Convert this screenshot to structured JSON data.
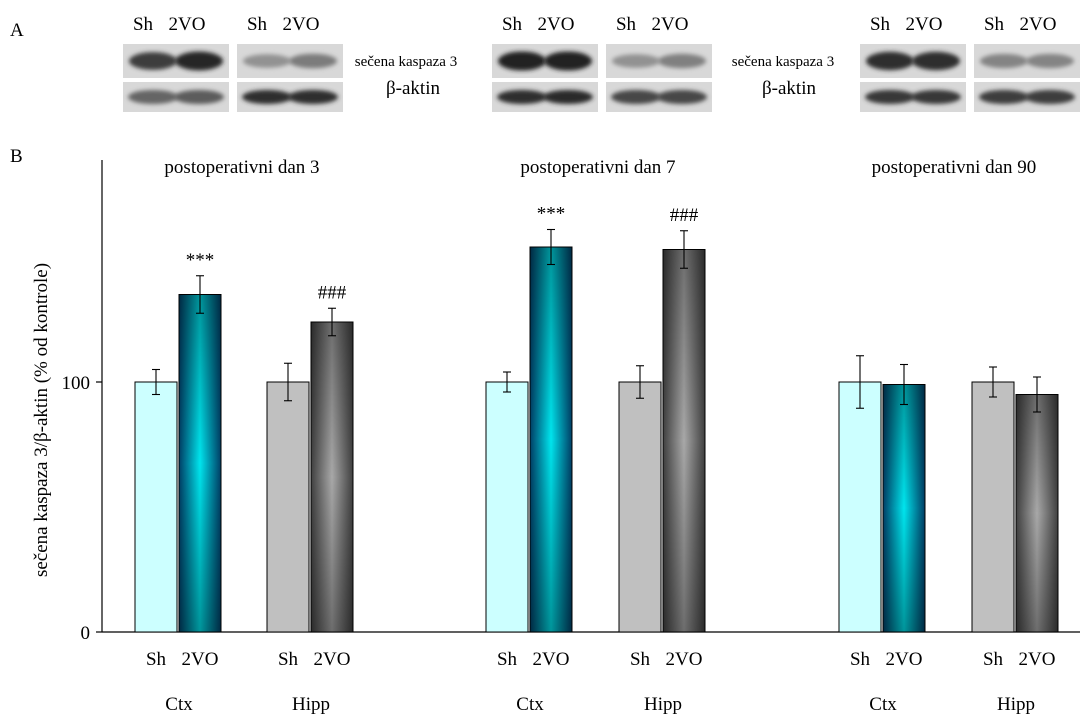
{
  "panel_labels": {
    "a": "A",
    "b": "B"
  },
  "blots": {
    "lane_labels": [
      "Sh",
      "2VO",
      "Sh",
      "2VO"
    ],
    "band_labels": {
      "caspase": "sečena kaspaza 3",
      "actin": "β-aktin"
    },
    "groups": [
      {
        "top": [
          [
            0.78,
            0.9
          ],
          [
            0.3,
            0.42
          ]
        ],
        "bottom": [
          [
            0.55,
            0.6
          ],
          [
            0.85,
            0.85
          ]
        ]
      },
      {
        "top": [
          [
            0.92,
            0.92
          ],
          [
            0.3,
            0.4
          ]
        ],
        "bottom": [
          [
            0.85,
            0.88
          ],
          [
            0.72,
            0.72
          ]
        ]
      },
      {
        "top": [
          [
            0.85,
            0.85
          ],
          [
            0.38,
            0.38
          ]
        ],
        "bottom": [
          [
            0.8,
            0.8
          ],
          [
            0.78,
            0.78
          ]
        ]
      }
    ]
  },
  "chart_data": {
    "type": "bar",
    "ylabel": "sečena kaspaza 3/β-aktin (% od kontrole)",
    "yticks": [
      0,
      100
    ],
    "ylim": [
      0,
      185
    ],
    "grid": false,
    "category_labels": [
      "Ctx",
      "Hipp",
      "Ctx",
      "Hipp",
      "Ctx",
      "Hipp"
    ],
    "bar_labels": [
      "Sh",
      "2VO"
    ],
    "colors": {
      "ctx_sh": "#ccffff",
      "ctx_2vo_edge": "#003e66",
      "ctx_2vo_center": "#00e5ee",
      "hipp_sh": "#c0c0c0",
      "hipp_2vo_edge": "#404040",
      "hipp_2vo_center": "#a8a8a8"
    },
    "panels": [
      {
        "title": "postoperativni dan 3",
        "groups": [
          {
            "region": "Ctx",
            "sh": 100,
            "sh_err": 5,
            "vo": 135,
            "vo_err": 7.5,
            "annotation": "***"
          },
          {
            "region": "Hipp",
            "sh": 100,
            "sh_err": 7.5,
            "vo": 124,
            "vo_err": 5.5,
            "annotation": "###"
          }
        ]
      },
      {
        "title": "postoperativni dan 7",
        "groups": [
          {
            "region": "Ctx",
            "sh": 100,
            "sh_err": 4,
            "vo": 154,
            "vo_err": 7,
            "annotation": "***"
          },
          {
            "region": "Hipp",
            "sh": 100,
            "sh_err": 6.5,
            "vo": 153,
            "vo_err": 7.5,
            "annotation": "###"
          }
        ]
      },
      {
        "title": "postoperativni dan 90",
        "groups": [
          {
            "region": "Ctx",
            "sh": 100,
            "sh_err": 10.5,
            "vo": 99,
            "vo_err": 8,
            "annotation": ""
          },
          {
            "region": "Hipp",
            "sh": 100,
            "sh_err": 6,
            "vo": 95,
            "vo_err": 7,
            "annotation": ""
          }
        ]
      }
    ]
  }
}
